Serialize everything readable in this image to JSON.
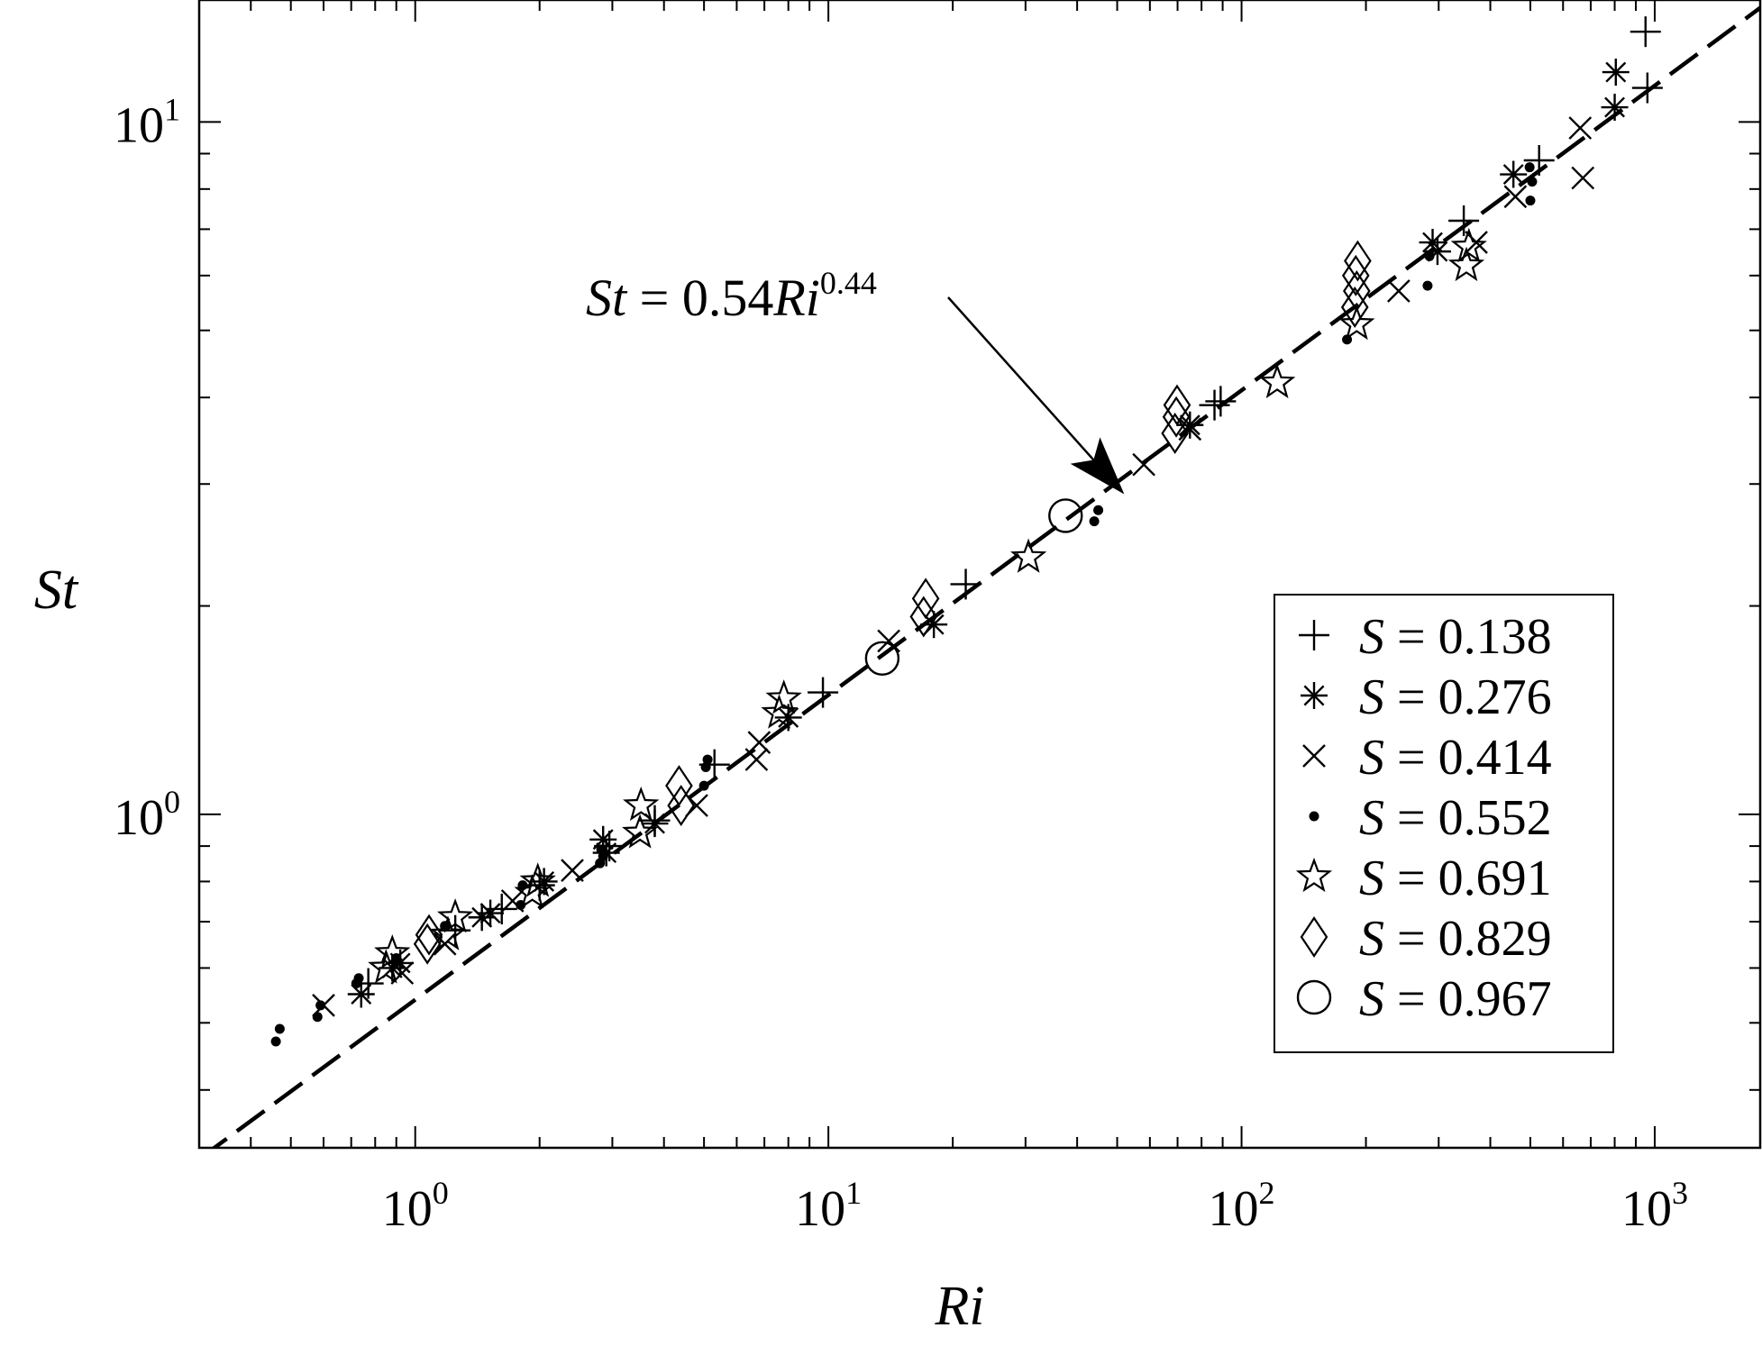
{
  "chart_data": {
    "type": "scatter",
    "xscale": "log",
    "yscale": "log",
    "xlabel": "Ri",
    "ylabel": "St",
    "xlim": [
      0.3,
      1800
    ],
    "ylim": [
      0.33,
      15
    ],
    "xticks": [
      {
        "value": 1,
        "base": "10",
        "exp": "0"
      },
      {
        "value": 10,
        "base": "10",
        "exp": "1"
      },
      {
        "value": 100,
        "base": "10",
        "exp": "2"
      },
      {
        "value": 1000,
        "base": "10",
        "exp": "3"
      }
    ],
    "yticks": [
      {
        "value": 1,
        "base": "10",
        "exp": "0"
      },
      {
        "value": 10,
        "base": "10",
        "exp": "1"
      }
    ],
    "grid": false,
    "legend_position": "lower-right",
    "fit_line": {
      "coefficient": 0.54,
      "exponent": 0.44,
      "style": "dashed",
      "annotation": {
        "lhs": "St",
        "eq": " = 0.54",
        "var": "Ri",
        "sup": "0.44",
        "arrow_to": {
          "x": 52,
          "y": 2.9
        }
      }
    },
    "series": [
      {
        "marker": "plus",
        "legend_var": "S",
        "legend_rest": " = 0.138",
        "points": [
          [
            0.77,
            0.57
          ],
          [
            1.25,
            0.68
          ],
          [
            1.62,
            0.73
          ],
          [
            2.0,
            0.79
          ],
          [
            2.95,
            0.9
          ],
          [
            3.8,
            0.98
          ],
          [
            5.3,
            1.18
          ],
          [
            9.7,
            1.5
          ],
          [
            21.5,
            2.15
          ],
          [
            86,
            3.9
          ],
          [
            89,
            3.95
          ],
          [
            345,
            7.2
          ],
          [
            525,
            8.8
          ],
          [
            960,
            11.2
          ],
          [
            950,
            13.5
          ]
        ]
      },
      {
        "marker": "asterisk",
        "legend_var": "S",
        "legend_rest": " = 0.276",
        "points": [
          [
            0.74,
            0.55
          ],
          [
            0.88,
            0.6
          ],
          [
            0.92,
            0.61
          ],
          [
            1.45,
            0.71
          ],
          [
            1.52,
            0.72
          ],
          [
            2.05,
            0.8
          ],
          [
            2.9,
            0.88
          ],
          [
            2.85,
            0.92
          ],
          [
            3.8,
            0.97
          ],
          [
            8.0,
            1.38
          ],
          [
            18,
            1.88
          ],
          [
            75,
            3.65
          ],
          [
            290,
            6.7
          ],
          [
            298,
            6.5
          ],
          [
            455,
            8.4
          ],
          [
            800,
            10.5
          ],
          [
            805,
            11.8
          ]
        ]
      },
      {
        "marker": "cross",
        "legend_var": "S",
        "legend_rest": " = 0.414",
        "points": [
          [
            0.6,
            0.53
          ],
          [
            0.93,
            0.59
          ],
          [
            1.18,
            0.65
          ],
          [
            1.72,
            0.75
          ],
          [
            2.4,
            0.83
          ],
          [
            4.8,
            1.03
          ],
          [
            6.7,
            1.2
          ],
          [
            6.8,
            1.27
          ],
          [
            14,
            1.78
          ],
          [
            58,
            3.2
          ],
          [
            75,
            3.6
          ],
          [
            240,
            5.7
          ],
          [
            370,
            6.7
          ],
          [
            460,
            7.8
          ],
          [
            670,
            8.3
          ],
          [
            660,
            9.8
          ]
        ]
      },
      {
        "marker": "dot",
        "legend_var": "S",
        "legend_rest": " = 0.552",
        "points": [
          [
            0.46,
            0.47
          ],
          [
            0.47,
            0.49
          ],
          [
            0.58,
            0.51
          ],
          [
            0.59,
            0.53
          ],
          [
            0.72,
            0.57
          ],
          [
            0.73,
            0.58
          ],
          [
            0.9,
            0.62
          ],
          [
            1.18,
            0.69
          ],
          [
            1.8,
            0.74
          ],
          [
            1.82,
            0.79
          ],
          [
            2.8,
            0.85
          ],
          [
            2.85,
            0.87
          ],
          [
            2.82,
            0.89
          ],
          [
            5.0,
            1.1
          ],
          [
            5.05,
            1.17
          ],
          [
            5.1,
            1.2
          ],
          [
            44,
            2.65
          ],
          [
            45,
            2.75
          ],
          [
            180,
            4.85
          ],
          [
            282,
            5.8
          ],
          [
            285,
            6.4
          ],
          [
            500,
            7.7
          ],
          [
            505,
            8.2
          ],
          [
            498,
            8.6
          ]
        ]
      },
      {
        "marker": "star",
        "legend_var": "S",
        "legend_rest": " = 0.691",
        "points": [
          [
            0.85,
            0.6
          ],
          [
            0.88,
            0.63
          ],
          [
            1.2,
            0.67
          ],
          [
            1.25,
            0.71
          ],
          [
            1.92,
            0.77
          ],
          [
            1.98,
            0.8
          ],
          [
            3.5,
            0.94
          ],
          [
            3.52,
            1.03
          ],
          [
            7.6,
            1.4
          ],
          [
            7.8,
            1.47
          ],
          [
            30.5,
            2.35
          ],
          [
            122,
            4.2
          ],
          [
            190,
            5.1
          ],
          [
            350,
            6.2
          ],
          [
            355,
            6.6
          ]
        ]
      },
      {
        "marker": "diamond",
        "legend_var": "S",
        "legend_rest": " = 0.829",
        "points": [
          [
            1.07,
            0.65
          ],
          [
            1.08,
            0.67
          ],
          [
            4.4,
            1.03
          ],
          [
            4.35,
            1.1
          ],
          [
            17,
            1.93
          ],
          [
            17.2,
            2.05
          ],
          [
            69,
            3.55
          ],
          [
            69.5,
            3.75
          ],
          [
            69.8,
            3.9
          ],
          [
            188,
            5.4
          ],
          [
            190,
            5.7
          ],
          [
            189,
            6.0
          ],
          [
            191,
            6.3
          ]
        ]
      },
      {
        "marker": "circle",
        "legend_var": "S",
        "legend_rest": " = 0.967",
        "points": [
          [
            13.5,
            1.68
          ],
          [
            37.5,
            2.7
          ]
        ]
      }
    ]
  }
}
